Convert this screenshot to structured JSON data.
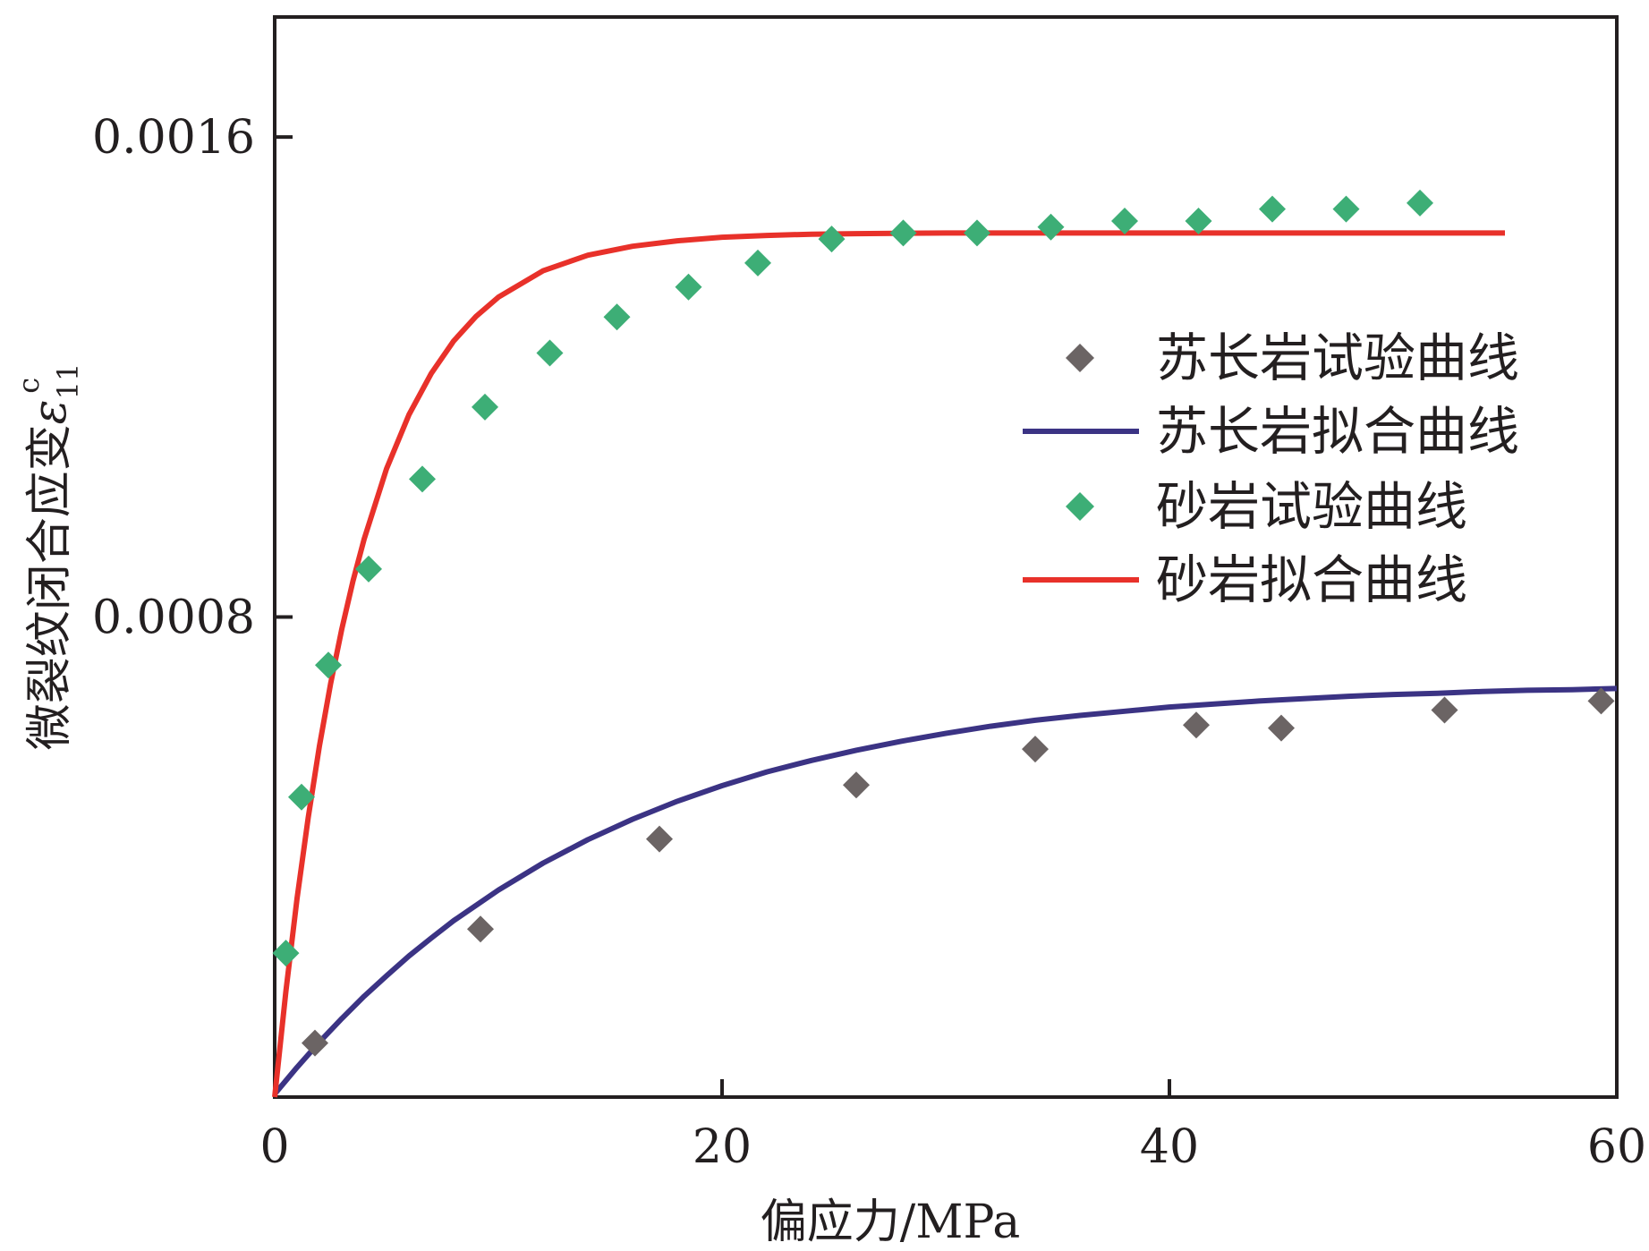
{
  "chart_data": {
    "type": "scatter",
    "title": "",
    "xlabel": "偏应力/MPa",
    "ylabel": "微裂纹闭合应变",
    "ylabel_symbol": "ε",
    "ylabel_subscript": "11",
    "ylabel_superscript": "c",
    "xlim": [
      0,
      60
    ],
    "ylim": [
      0,
      0.0018
    ],
    "xticks": [
      0,
      20,
      40,
      60
    ],
    "xtick_labels": [
      "0",
      "20",
      "40",
      "60"
    ],
    "yticks": [
      0.0008,
      0.0016
    ],
    "ytick_labels": [
      "0.0008",
      "0.0016"
    ],
    "legend_position": "center-right",
    "series": [
      {
        "name": "苏长岩试验曲线",
        "kind": "markers",
        "marker": "diamond",
        "color": "#6b6464",
        "x": [
          1.8,
          9.2,
          17.2,
          26.0,
          34.0,
          41.2,
          45.0,
          52.3,
          59.3
        ],
        "y": [
          9e-05,
          0.00028,
          0.00043,
          0.00052,
          0.00058,
          0.00062,
          0.000615,
          0.000645,
          0.00066
        ]
      },
      {
        "name": "苏长岩拟合曲线",
        "kind": "line",
        "color": "#3b3384",
        "x": [
          0,
          1,
          2,
          3,
          4,
          5,
          6,
          7,
          8,
          10,
          12,
          14,
          16,
          18,
          20,
          22,
          24,
          26,
          28,
          30,
          32,
          34,
          36,
          38,
          40,
          42,
          44,
          46,
          48,
          50,
          52,
          54,
          56,
          58,
          60
        ],
        "y": [
          5e-06,
          4.97e-05,
          9.17e-05,
          0.000131,
          0.000168,
          0.000202,
          0.000235,
          0.000265,
          0.000294,
          0.000345,
          0.00039,
          0.000429,
          0.000463,
          0.000493,
          0.000519,
          0.000542,
          0.000561,
          0.000578,
          0.000593,
          0.000606,
          0.000618,
          0.000628,
          0.000636,
          0.000643,
          0.00065,
          0.000655,
          0.00066,
          0.000664,
          0.000668,
          0.000671,
          0.000673,
          0.000676,
          0.000678,
          0.000679,
          0.000681
        ]
      },
      {
        "name": "砂岩试验曲线",
        "kind": "markers",
        "marker": "diamond",
        "color": "#3dae76",
        "x": [
          0.5,
          1.2,
          2.4,
          4.2,
          6.6,
          9.4,
          12.3,
          15.3,
          18.5,
          21.6,
          24.9,
          28.1,
          31.4,
          34.7,
          38.0,
          41.3,
          44.6,
          47.9,
          51.2
        ],
        "y": [
          0.00024,
          0.0005,
          0.00072,
          0.00088,
          0.00103,
          0.00115,
          0.00124,
          0.0013,
          0.00135,
          0.00139,
          0.00143,
          0.00144,
          0.00144,
          0.00145,
          0.00146,
          0.00146,
          0.00148,
          0.00148,
          0.00149
        ]
      },
      {
        "name": "砂岩拟合曲线",
        "kind": "line",
        "color": "#e8312a",
        "x": [
          0,
          0.5,
          1,
          1.5,
          2,
          2.5,
          3,
          3.5,
          4,
          5,
          6,
          7,
          8,
          9,
          10,
          12,
          14,
          16,
          18,
          20,
          22,
          24,
          26,
          30,
          35,
          40,
          45,
          50,
          55
        ],
        "y": [
          0.0,
          0.000176,
          0.000331,
          0.000466,
          0.000585,
          0.000689,
          0.00078,
          0.00086,
          0.00093,
          0.001047,
          0.001137,
          0.001206,
          0.00126,
          0.001301,
          0.001333,
          0.001377,
          0.001403,
          0.001418,
          0.001427,
          0.001433,
          0.001436,
          0.001438,
          0.001439,
          0.00144,
          0.00144,
          0.00144,
          0.00144,
          0.00144,
          0.00144
        ]
      }
    ]
  }
}
